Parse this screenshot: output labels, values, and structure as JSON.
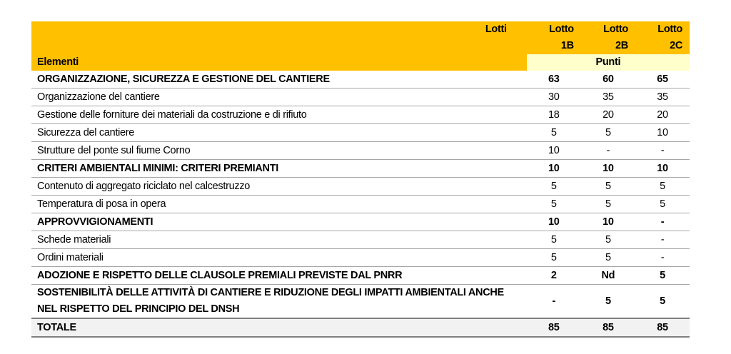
{
  "header": {
    "lotti_label": "Lotti",
    "elementi_label": "Elementi",
    "punti_label": "Punti",
    "lots": [
      {
        "line1": "Lotto",
        "line2": "1B"
      },
      {
        "line1": "Lotto",
        "line2": "2B"
      },
      {
        "line1": "Lotto",
        "line2": "2C"
      }
    ]
  },
  "colors": {
    "header": "#ffc000",
    "punti": "#ffffcc",
    "total": "#f2f2f2"
  },
  "rows": [
    {
      "label": "ORGANIZZAZIONE, SICUREZZA E GESTIONE DEL CANTIERE",
      "bold": true,
      "v": [
        "63",
        "60",
        "65"
      ]
    },
    {
      "label": "Organizzazione del cantiere",
      "bold": false,
      "v": [
        "30",
        "35",
        "35"
      ]
    },
    {
      "label": "Gestione delle forniture dei materiali da costruzione e di rifiuto",
      "bold": false,
      "v": [
        "18",
        "20",
        "20"
      ]
    },
    {
      "label": "Sicurezza del cantiere",
      "bold": false,
      "v": [
        "5",
        "5",
        "10"
      ]
    },
    {
      "label": "Strutture del ponte sul fiume Corno",
      "bold": false,
      "v": [
        "10",
        "-",
        "-"
      ]
    },
    {
      "label": "CRITERI AMBIENTALI MINIMI: CRITERI PREMIANTI",
      "bold": true,
      "v": [
        "10",
        "10",
        "10"
      ]
    },
    {
      "label": "Contenuto di aggregato riciclato nel calcestruzzo",
      "bold": false,
      "v": [
        "5",
        "5",
        "5"
      ]
    },
    {
      "label": "Temperatura di posa in opera",
      "bold": false,
      "v": [
        "5",
        "5",
        "5"
      ]
    },
    {
      "label": "APPROVVIGIONAMENTI",
      "bold": true,
      "v": [
        "10",
        "10",
        "-"
      ]
    },
    {
      "label": "Schede materiali",
      "bold": false,
      "v": [
        "5",
        "5",
        "-"
      ]
    },
    {
      "label": "Ordini materiali",
      "bold": false,
      "v": [
        "5",
        "5",
        "-"
      ]
    },
    {
      "label": "ADOZIONE E RISPETTO DELLE CLAUSOLE PREMIALI PREVISTE DAL PNRR",
      "bold": true,
      "v": [
        "2",
        "Nd",
        "5"
      ]
    },
    {
      "label": "SOSTENIBILITÀ DELLE ATTIVITÀ DI CANTIERE E RIDUZIONE DEGLI IMPATTI AMBIENTALI ANCHE NEL RISPETTO DEL PRINCIPIO DEL DNSH",
      "bold": true,
      "v": [
        "-",
        "5",
        "5"
      ]
    }
  ],
  "total": {
    "label": "TOTALE",
    "v": [
      "85",
      "85",
      "85"
    ]
  }
}
